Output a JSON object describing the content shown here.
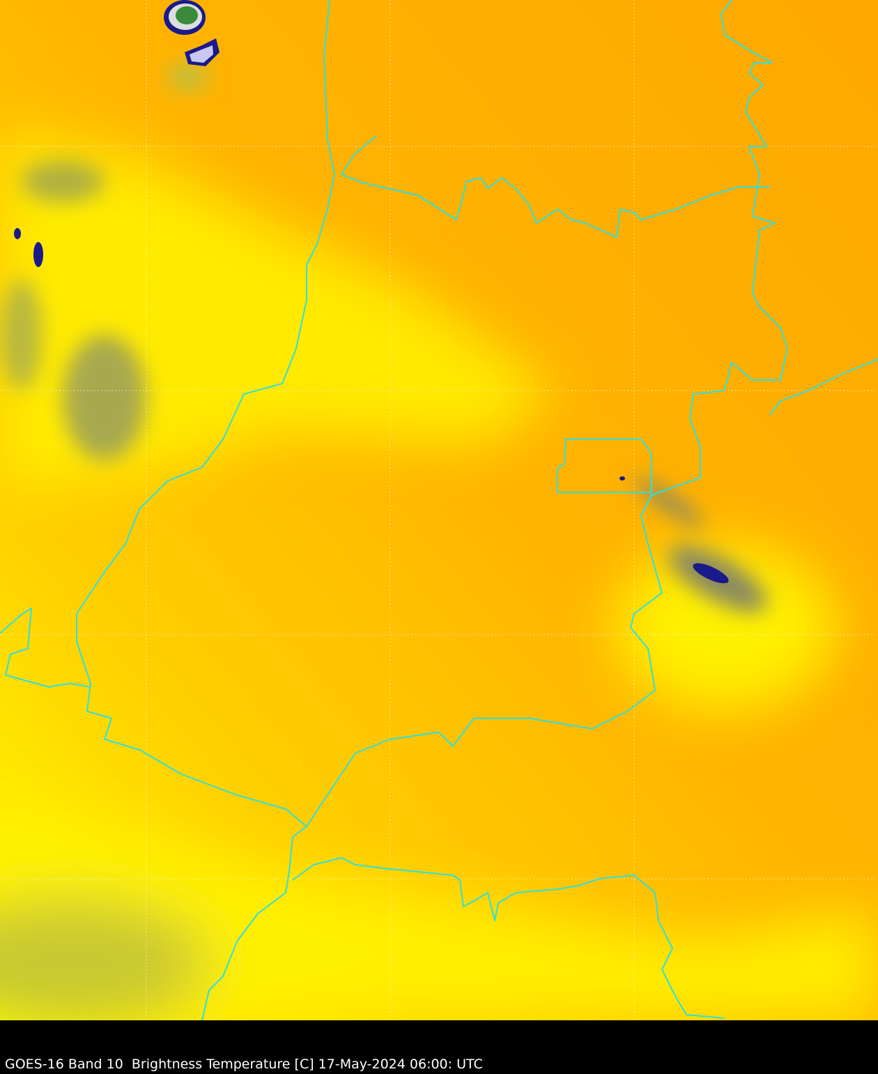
{
  "caption": "GOES-16 Band 10  Brightness Temperature [C] 17-May-2024 06:00: UTC",
  "colors": {
    "warm": "#FFA500",
    "mid": "#FFC000",
    "cool": "#FFFF00",
    "cloud_gray": "#9a9a50",
    "cold_core": "#1a1a8a",
    "border": "#2de0e0",
    "background": "#000000"
  }
}
